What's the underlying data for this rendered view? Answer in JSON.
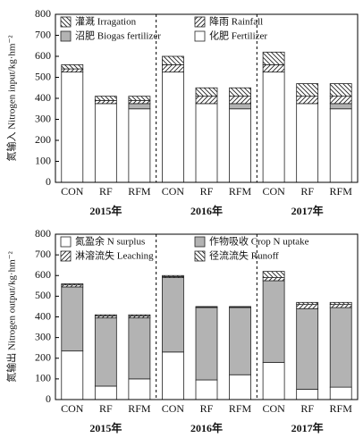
{
  "chart_data": [
    {
      "type": "stacked_bar",
      "y_label": "氮输入 Nitrogen input/kg·hm⁻²",
      "categories": [
        "CON",
        "RF",
        "RFM",
        "CON",
        "RF",
        "RFM",
        "CON",
        "RF",
        "RFM"
      ],
      "groups": [
        "2015年",
        "2016年",
        "2017年"
      ],
      "ylim": [
        0,
        800
      ],
      "yticks": [
        0,
        100,
        200,
        300,
        400,
        500,
        600,
        700,
        800
      ],
      "legend_reversed": true,
      "series": [
        {
          "name": "化肥 Fertilizer",
          "color": "#ffffff",
          "values": [
            525,
            375,
            350,
            525,
            375,
            350,
            525,
            375,
            350
          ]
        },
        {
          "name": "沼肥 Biogas fertilizer",
          "color": "#b3b3b3",
          "values": [
            0,
            0,
            25,
            0,
            0,
            25,
            0,
            0,
            25
          ]
        },
        {
          "name": "降雨 Rainfall",
          "color": "#ffffff",
          "hatch": "/",
          "values": [
            15,
            15,
            15,
            35,
            35,
            35,
            35,
            35,
            35
          ]
        },
        {
          "name": "灌溉 Irragation",
          "color": "#ffffff",
          "hatch": "\\",
          "values": [
            20,
            20,
            20,
            40,
            40,
            40,
            60,
            60,
            60
          ]
        }
      ]
    },
    {
      "type": "stacked_bar",
      "y_label": "氮输出 Nitrogen output/kg·hm⁻²",
      "categories": [
        "CON",
        "RF",
        "RFM",
        "CON",
        "RF",
        "RFM",
        "CON",
        "RF",
        "RFM"
      ],
      "groups": [
        "2015年",
        "2016年",
        "2017年"
      ],
      "ylim": [
        0,
        800
      ],
      "yticks": [
        0,
        100,
        200,
        300,
        400,
        500,
        600,
        700,
        800
      ],
      "legend_reversed": false,
      "series": [
        {
          "name": "氮盈余 N surplus",
          "color": "#ffffff",
          "values": [
            235,
            65,
            100,
            230,
            95,
            120,
            180,
            50,
            60
          ]
        },
        {
          "name": "作物吸收 Crop N uptake",
          "color": "#b3b3b3",
          "values": [
            310,
            330,
            295,
            360,
            350,
            325,
            395,
            390,
            385
          ]
        },
        {
          "name": "淋溶流失 Leaching",
          "color": "#ffffff",
          "hatch": "/",
          "values": [
            10,
            10,
            10,
            5,
            3,
            3,
            15,
            20,
            15
          ]
        },
        {
          "name": "径流流失 Runoff",
          "color": "#ffffff",
          "hatch": "\\",
          "values": [
            5,
            5,
            5,
            5,
            2,
            2,
            30,
            10,
            10
          ]
        }
      ]
    }
  ]
}
